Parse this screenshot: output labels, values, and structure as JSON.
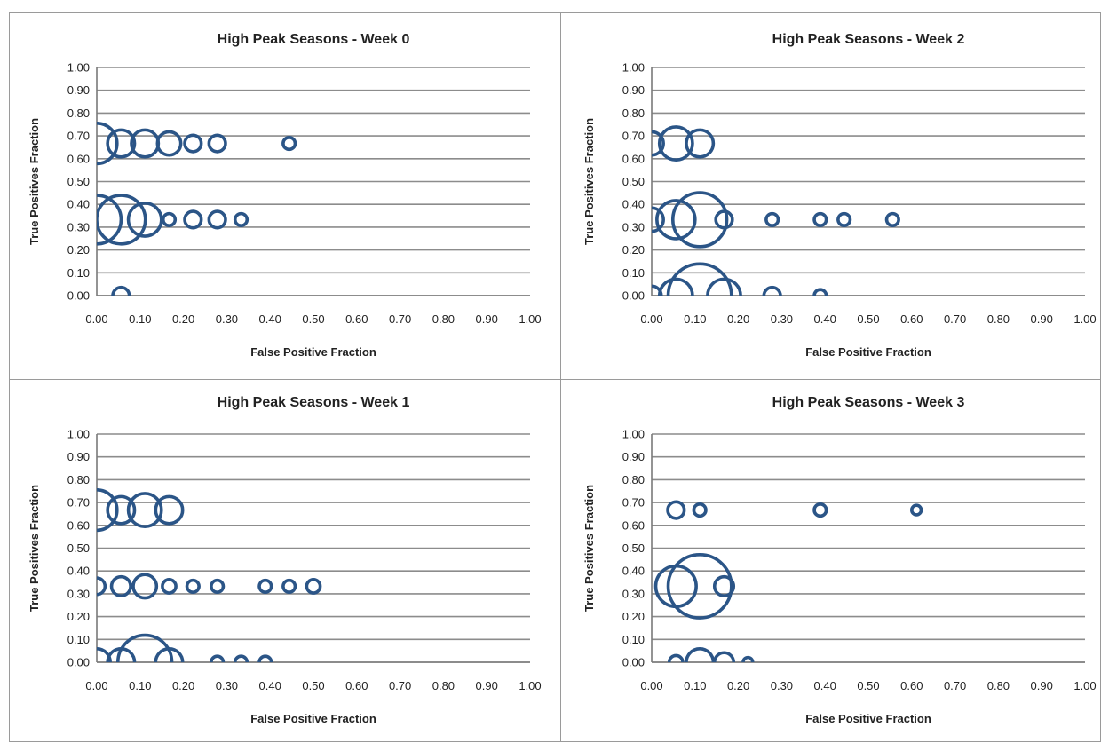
{
  "chart_data": [
    {
      "type": "bubble",
      "title": "High Peak Seasons - Week 0",
      "xlabel": "False Positive Fraction",
      "ylabel": "True Positives Fraction",
      "xlim": [
        0,
        1
      ],
      "ylim": [
        0,
        1
      ],
      "x_ticks": [
        "0.00",
        "0.10",
        "0.20",
        "0.30",
        "0.40",
        "0.50",
        "0.60",
        "0.70",
        "0.80",
        "0.90",
        "1.00"
      ],
      "y_ticks": [
        "0.00",
        "0.10",
        "0.20",
        "0.30",
        "0.40",
        "0.50",
        "0.60",
        "0.70",
        "0.80",
        "0.90",
        "1.00"
      ],
      "grid": true,
      "color": "#2b5587",
      "points": [
        {
          "x": 0.0,
          "y": 0.667,
          "size": 9
        },
        {
          "x": 0.056,
          "y": 0.667,
          "size": 4
        },
        {
          "x": 0.111,
          "y": 0.667,
          "size": 4
        },
        {
          "x": 0.167,
          "y": 0.667,
          "size": 3
        },
        {
          "x": 0.222,
          "y": 0.667,
          "size": 1.5
        },
        {
          "x": 0.278,
          "y": 0.667,
          "size": 1.5
        },
        {
          "x": 0.444,
          "y": 0.667,
          "size": 0.8
        },
        {
          "x": 0.0,
          "y": 0.333,
          "size": 13
        },
        {
          "x": 0.056,
          "y": 0.333,
          "size": 13
        },
        {
          "x": 0.111,
          "y": 0.333,
          "size": 6
        },
        {
          "x": 0.167,
          "y": 0.333,
          "size": 0.8
        },
        {
          "x": 0.222,
          "y": 0.333,
          "size": 1.5
        },
        {
          "x": 0.278,
          "y": 0.333,
          "size": 1.5
        },
        {
          "x": 0.333,
          "y": 0.333,
          "size": 0.8
        },
        {
          "x": 0.056,
          "y": 0.0,
          "size": 1.5
        }
      ]
    },
    {
      "type": "bubble",
      "title": "High Peak Seasons - Week 2",
      "xlabel": "False Positive Fraction",
      "ylabel": "True Positives Fraction",
      "xlim": [
        0,
        1
      ],
      "ylim": [
        0,
        1
      ],
      "x_ticks": [
        "0.00",
        "0.10",
        "0.20",
        "0.30",
        "0.40",
        "0.50",
        "0.60",
        "0.70",
        "0.80",
        "0.90",
        "1.00"
      ],
      "y_ticks": [
        "0.00",
        "0.10",
        "0.20",
        "0.30",
        "0.40",
        "0.50",
        "0.60",
        "0.70",
        "0.80",
        "0.90",
        "1.00"
      ],
      "grid": true,
      "color": "#2b5587",
      "points": [
        {
          "x": 0.0,
          "y": 0.667,
          "size": 3
        },
        {
          "x": 0.056,
          "y": 0.667,
          "size": 6
        },
        {
          "x": 0.111,
          "y": 0.667,
          "size": 4
        },
        {
          "x": 0.0,
          "y": 0.333,
          "size": 3
        },
        {
          "x": 0.056,
          "y": 0.333,
          "size": 8
        },
        {
          "x": 0.111,
          "y": 0.333,
          "size": 16
        },
        {
          "x": 0.167,
          "y": 0.333,
          "size": 1.5
        },
        {
          "x": 0.278,
          "y": 0.333,
          "size": 0.8
        },
        {
          "x": 0.389,
          "y": 0.333,
          "size": 0.8
        },
        {
          "x": 0.444,
          "y": 0.333,
          "size": 0.8
        },
        {
          "x": 0.556,
          "y": 0.333,
          "size": 0.8
        },
        {
          "x": 0.0,
          "y": 0.0,
          "size": 2
        },
        {
          "x": 0.056,
          "y": 0.0,
          "size": 6
        },
        {
          "x": 0.111,
          "y": 0.0,
          "size": 22
        },
        {
          "x": 0.167,
          "y": 0.0,
          "size": 6
        },
        {
          "x": 0.278,
          "y": 0.0,
          "size": 1.5
        },
        {
          "x": 0.389,
          "y": 0.0,
          "size": 0.8
        }
      ]
    },
    {
      "type": "bubble",
      "title": "High Peak Seasons - Week 1",
      "xlabel": "False Positive Fraction",
      "ylabel": "True Positives Fraction",
      "xlim": [
        0,
        1
      ],
      "ylim": [
        0,
        1
      ],
      "x_ticks": [
        "0.00",
        "0.10",
        "0.20",
        "0.30",
        "0.40",
        "0.50",
        "0.60",
        "0.70",
        "0.80",
        "0.90",
        "1.00"
      ],
      "y_ticks": [
        "0.00",
        "0.10",
        "0.20",
        "0.30",
        "0.40",
        "0.50",
        "0.60",
        "0.70",
        "0.80",
        "0.90",
        "1.00"
      ],
      "grid": true,
      "color": "#2b5587",
      "points": [
        {
          "x": 0.0,
          "y": 0.667,
          "size": 9
        },
        {
          "x": 0.056,
          "y": 0.667,
          "size": 4
        },
        {
          "x": 0.111,
          "y": 0.667,
          "size": 6
        },
        {
          "x": 0.167,
          "y": 0.667,
          "size": 4
        },
        {
          "x": 0.0,
          "y": 0.333,
          "size": 1.5
        },
        {
          "x": 0.056,
          "y": 0.333,
          "size": 2
        },
        {
          "x": 0.111,
          "y": 0.333,
          "size": 3
        },
        {
          "x": 0.167,
          "y": 0.333,
          "size": 1
        },
        {
          "x": 0.222,
          "y": 0.333,
          "size": 0.8
        },
        {
          "x": 0.278,
          "y": 0.333,
          "size": 0.8
        },
        {
          "x": 0.389,
          "y": 0.333,
          "size": 0.8
        },
        {
          "x": 0.444,
          "y": 0.333,
          "size": 0.8
        },
        {
          "x": 0.5,
          "y": 0.333,
          "size": 1
        },
        {
          "x": 0.0,
          "y": 0.0,
          "size": 4
        },
        {
          "x": 0.056,
          "y": 0.0,
          "size": 4
        },
        {
          "x": 0.111,
          "y": 0.0,
          "size": 16
        },
        {
          "x": 0.167,
          "y": 0.0,
          "size": 4
        },
        {
          "x": 0.278,
          "y": 0.0,
          "size": 0.8
        },
        {
          "x": 0.333,
          "y": 0.0,
          "size": 0.8
        },
        {
          "x": 0.389,
          "y": 0.0,
          "size": 0.8
        }
      ]
    },
    {
      "type": "bubble",
      "title": "High Peak Seasons - Week 3",
      "xlabel": "False Positive Fraction",
      "ylabel": "True Positives Fraction",
      "xlim": [
        0,
        1
      ],
      "ylim": [
        0,
        1
      ],
      "x_ticks": [
        "0.00",
        "0.10",
        "0.20",
        "0.30",
        "0.40",
        "0.50",
        "0.60",
        "0.70",
        "0.80",
        "0.90",
        "1.00"
      ],
      "y_ticks": [
        "0.00",
        "0.10",
        "0.20",
        "0.30",
        "0.40",
        "0.50",
        "0.60",
        "0.70",
        "0.80",
        "0.90",
        "1.00"
      ],
      "grid": true,
      "color": "#2b5587",
      "points": [
        {
          "x": 0.056,
          "y": 0.667,
          "size": 1.5
        },
        {
          "x": 0.111,
          "y": 0.667,
          "size": 0.8
        },
        {
          "x": 0.389,
          "y": 0.667,
          "size": 0.8
        },
        {
          "x": 0.611,
          "y": 0.667,
          "size": 0.5
        },
        {
          "x": 0.056,
          "y": 0.333,
          "size": 9
        },
        {
          "x": 0.111,
          "y": 0.333,
          "size": 22
        },
        {
          "x": 0.167,
          "y": 0.333,
          "size": 2
        },
        {
          "x": 0.056,
          "y": 0.0,
          "size": 1
        },
        {
          "x": 0.111,
          "y": 0.0,
          "size": 4
        },
        {
          "x": 0.167,
          "y": 0.0,
          "size": 2
        },
        {
          "x": 0.222,
          "y": 0.0,
          "size": 0.5
        }
      ]
    }
  ]
}
